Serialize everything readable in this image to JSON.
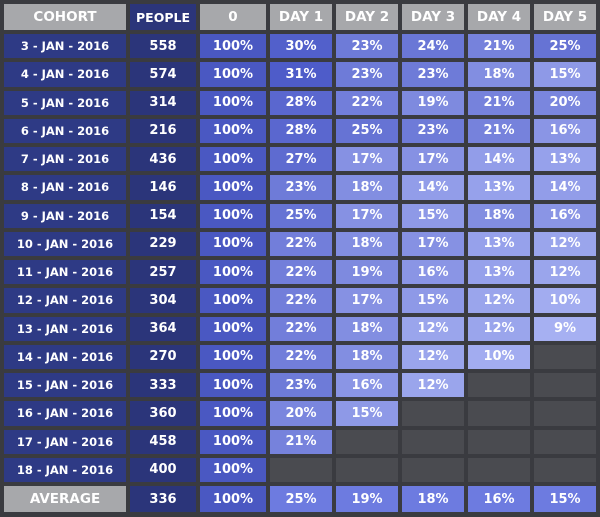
{
  "chart_data": {
    "type": "table",
    "columns": [
      "COHORT",
      "PEOPLE",
      "0",
      "DAY 1",
      "DAY 2",
      "DAY 3",
      "DAY 4",
      "DAY 5"
    ],
    "rows": [
      {
        "cohort": "3 - JAN - 2016",
        "people": "558",
        "values": [
          "100%",
          "30%",
          "23%",
          "24%",
          "21%",
          "25%"
        ]
      },
      {
        "cohort": "4 - JAN - 2016",
        "people": "574",
        "values": [
          "100%",
          "31%",
          "23%",
          "23%",
          "18%",
          "15%"
        ]
      },
      {
        "cohort": "5 - JAN - 2016",
        "people": "314",
        "values": [
          "100%",
          "28%",
          "22%",
          "19%",
          "21%",
          "20%"
        ]
      },
      {
        "cohort": "6 - JAN - 2016",
        "people": "216",
        "values": [
          "100%",
          "28%",
          "25%",
          "23%",
          "21%",
          "16%"
        ]
      },
      {
        "cohort": "7 - JAN - 2016",
        "people": "436",
        "values": [
          "100%",
          "27%",
          "17%",
          "17%",
          "14%",
          "13%"
        ]
      },
      {
        "cohort": "8 - JAN - 2016",
        "people": "146",
        "values": [
          "100%",
          "23%",
          "18%",
          "14%",
          "13%",
          "14%"
        ]
      },
      {
        "cohort": "9 - JAN - 2016",
        "people": "154",
        "values": [
          "100%",
          "25%",
          "17%",
          "15%",
          "18%",
          "16%"
        ]
      },
      {
        "cohort": "10 - JAN - 2016",
        "people": "229",
        "values": [
          "100%",
          "22%",
          "18%",
          "17%",
          "13%",
          "12%"
        ]
      },
      {
        "cohort": "11 - JAN - 2016",
        "people": "257",
        "values": [
          "100%",
          "22%",
          "19%",
          "16%",
          "13%",
          "12%"
        ]
      },
      {
        "cohort": "12 - JAN - 2016",
        "people": "304",
        "values": [
          "100%",
          "22%",
          "17%",
          "15%",
          "12%",
          "10%"
        ]
      },
      {
        "cohort": "13 - JAN - 2016",
        "people": "364",
        "values": [
          "100%",
          "22%",
          "18%",
          "12%",
          "12%",
          "9%"
        ]
      },
      {
        "cohort": "14 - JAN - 2016",
        "people": "270",
        "values": [
          "100%",
          "22%",
          "18%",
          "12%",
          "10%"
        ]
      },
      {
        "cohort": "15 - JAN - 2016",
        "people": "333",
        "values": [
          "100%",
          "23%",
          "16%",
          "12%"
        ]
      },
      {
        "cohort": "16 - JAN - 2016",
        "people": "360",
        "values": [
          "100%",
          "20%",
          "15%"
        ]
      },
      {
        "cohort": "17 - JAN - 2016",
        "people": "458",
        "values": [
          "100%",
          "21%"
        ]
      },
      {
        "cohort": "18 - JAN - 2016",
        "people": "400",
        "values": [
          "100%"
        ]
      }
    ],
    "average": {
      "label": "AVERAGE",
      "people": "336",
      "values": [
        "100%",
        "25%",
        "19%",
        "18%",
        "16%",
        "15%"
      ]
    },
    "colors": {
      "header": "#a7a8ab",
      "cohort": "#2e3a85",
      "people": "#2b357a",
      "day0": "#4a58c2",
      "empty": "#4a4b50",
      "average_day": "#6d7be0",
      "scale_low": "#a6b0f2",
      "scale_high": "#4e5cc9"
    }
  }
}
